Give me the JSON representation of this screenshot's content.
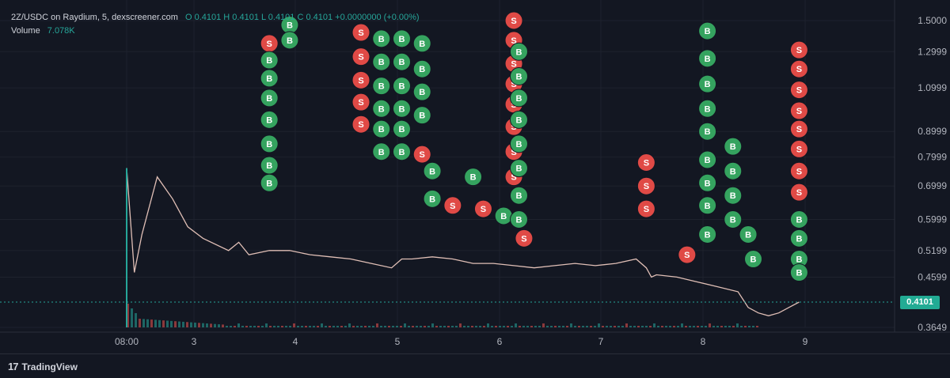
{
  "header": {
    "symbol_line": "2Z/USDC on Raydium, 5, dexscreener.com",
    "ohlc_line": "O 0.4101 H 0.4101 L 0.4101 C 0.4101 +0.0000000 (+0.00%)",
    "volume_label": "Volume",
    "volume_value": "7.078K"
  },
  "footer": {
    "logo_mark": "17",
    "brand": "TradingView"
  },
  "last_price_label": "0.4101",
  "colors": {
    "background": "#131722",
    "up": "#26a69a",
    "down": "#ef5350",
    "buy": "#35a35f",
    "sell": "#e04a46",
    "badge": "#22ab94"
  },
  "chart_data": {
    "type": "line",
    "scale": "log",
    "title": "",
    "x_ticks": [
      "08:00",
      "3",
      "4",
      "5",
      "6",
      "7",
      "8",
      "9"
    ],
    "y_ticks": [
      1.5,
      1.2999,
      1.0999,
      0.8999,
      0.7999,
      0.6999,
      0.5999,
      0.5199,
      0.4599,
      0.3649
    ],
    "y_tick_labels": [
      "1.5000",
      "1.2999",
      "1.0999",
      "0.8999",
      "0.7999",
      "0.6999",
      "0.5999",
      "0.5199",
      "0.4599",
      "0.3649"
    ],
    "ylim": [
      0.3649,
      1.5
    ],
    "last_price": 0.4101,
    "series": [
      {
        "x": [
          "08:00",
          "08:05",
          "08:10",
          "08:20",
          "08:30",
          "08:40",
          "08:50",
          "3",
          "3.1",
          "3.2",
          "3.4",
          "3.6",
          "3.8",
          "4",
          "4.2",
          "4.4",
          "4.6",
          "4.7",
          "4.8",
          "5",
          "5.2",
          "5.4",
          "5.6",
          "5.8",
          "6",
          "6.2",
          "6.4",
          "6.6",
          "6.8",
          "7",
          "7.1",
          "7.15",
          "7.2",
          "7.4",
          "7.6",
          "7.8",
          "8",
          "8.1",
          "8.2",
          "8.3",
          "8.4",
          "8.5",
          "8.6"
        ],
        "values": [
          0.76,
          0.47,
          0.56,
          0.73,
          0.66,
          0.58,
          0.55,
          0.52,
          0.54,
          0.51,
          0.52,
          0.52,
          0.51,
          0.505,
          0.5,
          0.49,
          0.48,
          0.5,
          0.5,
          0.505,
          0.5,
          0.49,
          0.49,
          0.485,
          0.48,
          0.485,
          0.49,
          0.485,
          0.49,
          0.5,
          0.48,
          0.46,
          0.465,
          0.46,
          0.45,
          0.44,
          0.43,
          0.4,
          0.39,
          0.385,
          0.39,
          0.4,
          0.41
        ]
      }
    ],
    "trade_markers": [
      {
        "x": "3.4",
        "y": 1.35,
        "side": "S"
      },
      {
        "x": "3.4",
        "y": 1.25,
        "side": "B"
      },
      {
        "x": "3.4",
        "y": 1.15,
        "side": "B"
      },
      {
        "x": "3.4",
        "y": 1.05,
        "side": "B"
      },
      {
        "x": "3.4",
        "y": 0.95,
        "side": "B"
      },
      {
        "x": "3.4",
        "y": 0.85,
        "side": "B"
      },
      {
        "x": "3.4",
        "y": 0.77,
        "side": "B"
      },
      {
        "x": "3.4",
        "y": 0.71,
        "side": "B"
      },
      {
        "x": "3.6",
        "y": 1.47,
        "side": "B"
      },
      {
        "x": "3.6",
        "y": 1.37,
        "side": "B"
      },
      {
        "x": "4.3",
        "y": 1.42,
        "side": "S"
      },
      {
        "x": "4.3",
        "y": 1.27,
        "side": "S"
      },
      {
        "x": "4.3",
        "y": 1.14,
        "side": "S"
      },
      {
        "x": "4.3",
        "y": 1.03,
        "side": "S"
      },
      {
        "x": "4.3",
        "y": 0.93,
        "side": "S"
      },
      {
        "x": "4.5",
        "y": 1.38,
        "side": "B"
      },
      {
        "x": "4.5",
        "y": 1.24,
        "side": "B"
      },
      {
        "x": "4.5",
        "y": 1.11,
        "side": "B"
      },
      {
        "x": "4.5",
        "y": 1.0,
        "side": "B"
      },
      {
        "x": "4.5",
        "y": 0.91,
        "side": "B"
      },
      {
        "x": "4.5",
        "y": 0.82,
        "side": "B"
      },
      {
        "x": "4.7",
        "y": 1.38,
        "side": "B"
      },
      {
        "x": "4.7",
        "y": 1.24,
        "side": "B"
      },
      {
        "x": "4.7",
        "y": 1.11,
        "side": "B"
      },
      {
        "x": "4.7",
        "y": 1.0,
        "side": "B"
      },
      {
        "x": "4.7",
        "y": 0.91,
        "side": "B"
      },
      {
        "x": "4.7",
        "y": 0.82,
        "side": "B"
      },
      {
        "x": "4.9",
        "y": 1.35,
        "side": "B"
      },
      {
        "x": "4.9",
        "y": 1.2,
        "side": "B"
      },
      {
        "x": "4.9",
        "y": 1.08,
        "side": "B"
      },
      {
        "x": "4.9",
        "y": 0.97,
        "side": "B"
      },
      {
        "x": "4.9",
        "y": 0.81,
        "side": "S"
      },
      {
        "x": "5.0",
        "y": 0.75,
        "side": "B"
      },
      {
        "x": "5.0",
        "y": 0.66,
        "side": "B"
      },
      {
        "x": "5.2",
        "y": 0.64,
        "side": "S"
      },
      {
        "x": "5.4",
        "y": 0.73,
        "side": "B"
      },
      {
        "x": "5.5",
        "y": 0.63,
        "side": "S"
      },
      {
        "x": "5.7",
        "y": 0.61,
        "side": "B"
      },
      {
        "x": "5.8",
        "y": 1.5,
        "side": "S"
      },
      {
        "x": "5.8",
        "y": 1.37,
        "side": "S"
      },
      {
        "x": "5.8",
        "y": 1.23,
        "side": "S"
      },
      {
        "x": "5.8",
        "y": 1.12,
        "side": "S"
      },
      {
        "x": "5.8",
        "y": 1.02,
        "side": "S"
      },
      {
        "x": "5.8",
        "y": 0.92,
        "side": "S"
      },
      {
        "x": "5.8",
        "y": 0.82,
        "side": "S"
      },
      {
        "x": "5.8",
        "y": 0.73,
        "side": "S"
      },
      {
        "x": "5.85",
        "y": 1.3,
        "side": "B"
      },
      {
        "x": "5.85",
        "y": 1.16,
        "side": "B"
      },
      {
        "x": "5.85",
        "y": 1.05,
        "side": "B"
      },
      {
        "x": "5.85",
        "y": 0.95,
        "side": "B"
      },
      {
        "x": "5.85",
        "y": 0.85,
        "side": "B"
      },
      {
        "x": "5.85",
        "y": 0.76,
        "side": "B"
      },
      {
        "x": "5.85",
        "y": 0.67,
        "side": "B"
      },
      {
        "x": "5.85",
        "y": 0.6,
        "side": "B"
      },
      {
        "x": "5.9",
        "y": 0.55,
        "side": "S"
      },
      {
        "x": "7.1",
        "y": 0.78,
        "side": "S"
      },
      {
        "x": "7.1",
        "y": 0.7,
        "side": "S"
      },
      {
        "x": "7.1",
        "y": 0.63,
        "side": "S"
      },
      {
        "x": "7.5",
        "y": 0.51,
        "side": "S"
      },
      {
        "x": "7.7",
        "y": 1.43,
        "side": "B"
      },
      {
        "x": "7.7",
        "y": 1.26,
        "side": "B"
      },
      {
        "x": "7.7",
        "y": 1.12,
        "side": "B"
      },
      {
        "x": "7.7",
        "y": 1.0,
        "side": "B"
      },
      {
        "x": "7.7",
        "y": 0.9,
        "side": "B"
      },
      {
        "x": "7.7",
        "y": 0.79,
        "side": "B"
      },
      {
        "x": "7.7",
        "y": 0.71,
        "side": "B"
      },
      {
        "x": "7.7",
        "y": 0.64,
        "side": "B"
      },
      {
        "x": "7.7",
        "y": 0.56,
        "side": "B"
      },
      {
        "x": "7.95",
        "y": 0.84,
        "side": "B"
      },
      {
        "x": "7.95",
        "y": 0.75,
        "side": "B"
      },
      {
        "x": "7.95",
        "y": 0.67,
        "side": "B"
      },
      {
        "x": "7.95",
        "y": 0.6,
        "side": "B"
      },
      {
        "x": "8.1",
        "y": 0.56,
        "side": "B"
      },
      {
        "x": "8.15",
        "y": 0.5,
        "side": "B"
      },
      {
        "x": "8.6",
        "y": 1.31,
        "side": "S"
      },
      {
        "x": "8.6",
        "y": 1.2,
        "side": "S"
      },
      {
        "x": "8.6",
        "y": 1.09,
        "side": "S"
      },
      {
        "x": "8.6",
        "y": 0.99,
        "side": "S"
      },
      {
        "x": "8.6",
        "y": 0.91,
        "side": "S"
      },
      {
        "x": "8.6",
        "y": 0.83,
        "side": "S"
      },
      {
        "x": "8.6",
        "y": 0.75,
        "side": "S"
      },
      {
        "x": "8.6",
        "y": 0.68,
        "side": "S"
      },
      {
        "x": "8.6",
        "y": 0.6,
        "side": "B"
      },
      {
        "x": "8.6",
        "y": 0.55,
        "side": "B"
      },
      {
        "x": "8.6",
        "y": 0.5,
        "side": "B"
      },
      {
        "x": "8.6",
        "y": 0.47,
        "side": "B"
      }
    ]
  }
}
